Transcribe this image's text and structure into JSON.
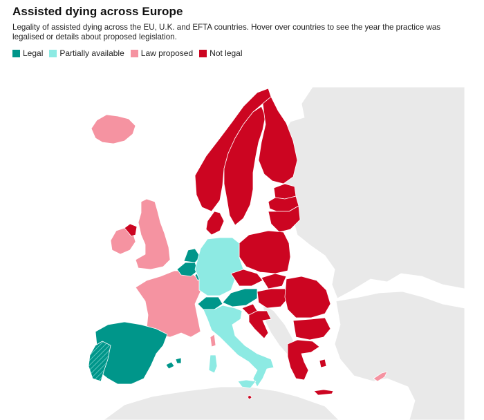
{
  "title": "Assisted dying across Europe",
  "subtitle": "Legality of assisted dying across the EU, U.K. and EFTA countries. Hover over countries to see the year the practice was legalised or details about proposed legislation.",
  "legend": [
    {
      "key": "legal",
      "label": "Legal",
      "color": "#00968a"
    },
    {
      "key": "partial",
      "label": "Partially available",
      "color": "#8deae3"
    },
    {
      "key": "proposed",
      "label": "Law proposed",
      "color": "#f593a1"
    },
    {
      "key": "notlegal",
      "label": "Not legal",
      "color": "#cc0521"
    }
  ],
  "colors": {
    "background_land": "#e9e9e9"
  },
  "countries": [
    {
      "name": "Iceland",
      "status": "proposed"
    },
    {
      "name": "Ireland",
      "status": "proposed"
    },
    {
      "name": "Northern Ireland",
      "status": "notlegal"
    },
    {
      "name": "United Kingdom",
      "status": "proposed"
    },
    {
      "name": "France",
      "status": "proposed"
    },
    {
      "name": "Spain",
      "status": "legal"
    },
    {
      "name": "Portugal",
      "status": "legal"
    },
    {
      "name": "Belgium",
      "status": "legal"
    },
    {
      "name": "Netherlands",
      "status": "legal"
    },
    {
      "name": "Luxembourg",
      "status": "legal"
    },
    {
      "name": "Germany",
      "status": "partial"
    },
    {
      "name": "Switzerland",
      "status": "legal"
    },
    {
      "name": "Austria",
      "status": "legal"
    },
    {
      "name": "Italy",
      "status": "partial"
    },
    {
      "name": "Norway",
      "status": "notlegal"
    },
    {
      "name": "Sweden",
      "status": "notlegal"
    },
    {
      "name": "Finland",
      "status": "notlegal"
    },
    {
      "name": "Denmark",
      "status": "notlegal"
    },
    {
      "name": "Estonia",
      "status": "notlegal"
    },
    {
      "name": "Latvia",
      "status": "notlegal"
    },
    {
      "name": "Lithuania",
      "status": "notlegal"
    },
    {
      "name": "Poland",
      "status": "notlegal"
    },
    {
      "name": "Czechia",
      "status": "notlegal"
    },
    {
      "name": "Slovakia",
      "status": "notlegal"
    },
    {
      "name": "Hungary",
      "status": "notlegal"
    },
    {
      "name": "Slovenia",
      "status": "notlegal"
    },
    {
      "name": "Croatia",
      "status": "notlegal"
    },
    {
      "name": "Romania",
      "status": "notlegal"
    },
    {
      "name": "Bulgaria",
      "status": "notlegal"
    },
    {
      "name": "Greece",
      "status": "notlegal"
    },
    {
      "name": "Cyprus",
      "status": "proposed"
    },
    {
      "name": "Malta",
      "status": "notlegal"
    }
  ]
}
